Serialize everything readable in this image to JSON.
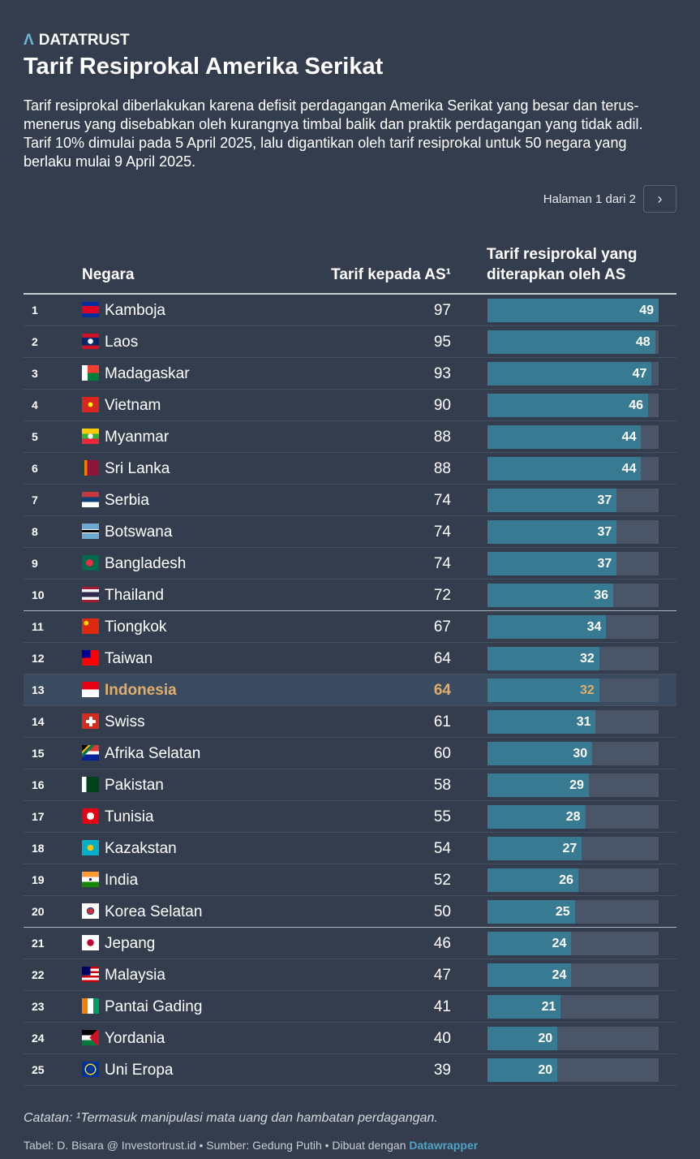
{
  "brand": "DATATRUST",
  "title": "Tarif Resiprokal Amerika Serikat",
  "description": "Tarif resiprokal diberlakukan karena defisit perdagangan Amerika Serikat yang besar dan terus-menerus yang disebabkan oleh kurangnya timbal balik dan praktik perdagangan yang tidak adil. Tarif 10% dimulai pada 5 April 2025, lalu digantikan oleh tarif resiprokal untuk 50 negara yang berlaku mulai 9 April 2025.",
  "pager": {
    "label": "Halaman 1 dari 2",
    "next_icon": "chevron-right"
  },
  "columns": {
    "country": "Negara",
    "tariff": "Tarif kepada AS¹",
    "reciprocal": "Tarif resiprokal yang diterapkan oleh AS"
  },
  "colors": {
    "bar": "#387a92",
    "track": "#4a5668",
    "highlight": "#e0ad6b",
    "link": "#4fa3c4"
  },
  "bar_max": 49,
  "rows": [
    {
      "rank": "1",
      "country": "Kamboja",
      "tariff": "97",
      "reciprocal": 49,
      "flag": "kh"
    },
    {
      "rank": "2",
      "country": "Laos",
      "tariff": "95",
      "reciprocal": 48,
      "flag": "la"
    },
    {
      "rank": "3",
      "country": "Madagaskar",
      "tariff": "93",
      "reciprocal": 47,
      "flag": "mg"
    },
    {
      "rank": "4",
      "country": "Vietnam",
      "tariff": "90",
      "reciprocal": 46,
      "flag": "vn"
    },
    {
      "rank": "5",
      "country": "Myanmar",
      "tariff": "88",
      "reciprocal": 44,
      "flag": "mm"
    },
    {
      "rank": "6",
      "country": "Sri Lanka",
      "tariff": "88",
      "reciprocal": 44,
      "flag": "lk"
    },
    {
      "rank": "7",
      "country": "Serbia",
      "tariff": "74",
      "reciprocal": 37,
      "flag": "rs"
    },
    {
      "rank": "8",
      "country": "Botswana",
      "tariff": "74",
      "reciprocal": 37,
      "flag": "bw"
    },
    {
      "rank": "9",
      "country": "Bangladesh",
      "tariff": "74",
      "reciprocal": 37,
      "flag": "bd"
    },
    {
      "rank": "10",
      "country": "Thailand",
      "tariff": "72",
      "reciprocal": 36,
      "flag": "th"
    },
    {
      "rank": "11",
      "country": "Tiongkok",
      "tariff": "67",
      "reciprocal": 34,
      "flag": "cn"
    },
    {
      "rank": "12",
      "country": "Taiwan",
      "tariff": "64",
      "reciprocal": 32,
      "flag": "tw"
    },
    {
      "rank": "13",
      "country": "Indonesia",
      "tariff": "64",
      "reciprocal": 32,
      "flag": "id",
      "highlight": true
    },
    {
      "rank": "14",
      "country": "Swiss",
      "tariff": "61",
      "reciprocal": 31,
      "flag": "ch"
    },
    {
      "rank": "15",
      "country": "Afrika Selatan",
      "tariff": "60",
      "reciprocal": 30,
      "flag": "za"
    },
    {
      "rank": "16",
      "country": "Pakistan",
      "tariff": "58",
      "reciprocal": 29,
      "flag": "pk"
    },
    {
      "rank": "17",
      "country": "Tunisia",
      "tariff": "55",
      "reciprocal": 28,
      "flag": "tn"
    },
    {
      "rank": "18",
      "country": "Kazakstan",
      "tariff": "54",
      "reciprocal": 27,
      "flag": "kz"
    },
    {
      "rank": "19",
      "country": "India",
      "tariff": "52",
      "reciprocal": 26,
      "flag": "in"
    },
    {
      "rank": "20",
      "country": "Korea Selatan",
      "tariff": "50",
      "reciprocal": 25,
      "flag": "kr"
    },
    {
      "rank": "21",
      "country": "Jepang",
      "tariff": "46",
      "reciprocal": 24,
      "flag": "jp"
    },
    {
      "rank": "22",
      "country": "Malaysia",
      "tariff": "47",
      "reciprocal": 24,
      "flag": "my"
    },
    {
      "rank": "23",
      "country": "Pantai Gading",
      "tariff": "41",
      "reciprocal": 21,
      "flag": "ci"
    },
    {
      "rank": "24",
      "country": "Yordania",
      "tariff": "40",
      "reciprocal": 20,
      "flag": "jo"
    },
    {
      "rank": "25",
      "country": "Uni Eropa",
      "tariff": "39",
      "reciprocal": 20,
      "flag": "eu"
    }
  ],
  "note": "Catatan: ¹Termasuk manipulasi mata uang dan hambatan perdagangan.",
  "footer": {
    "text": "Tabel: D. Bisara @ Investortrust.id • Sumber: Gedung Putih • Dibuat dengan ",
    "link": "Datawrapper"
  }
}
